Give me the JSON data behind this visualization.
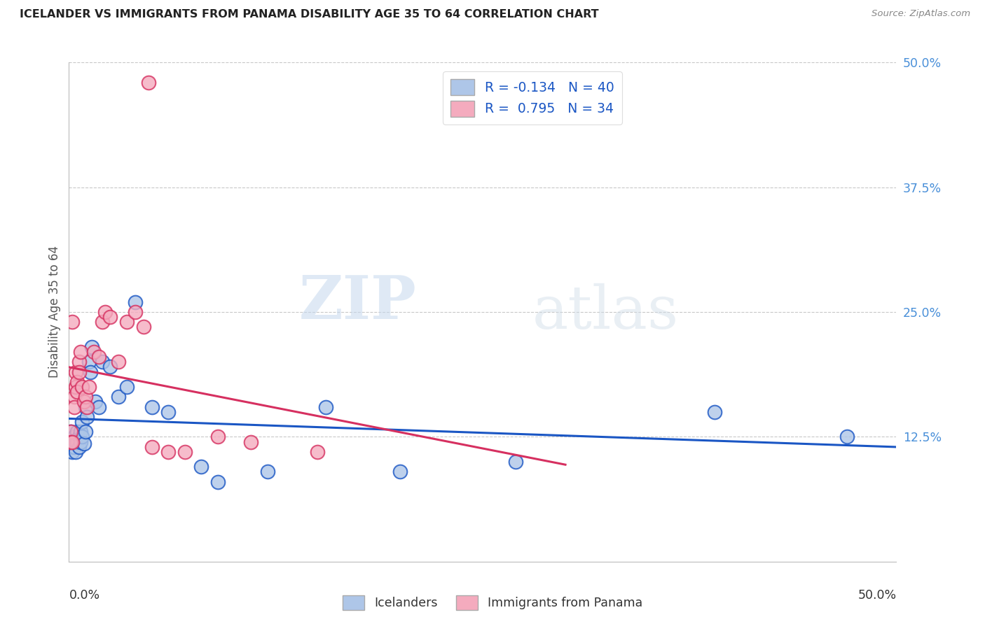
{
  "title": "ICELANDER VS IMMIGRANTS FROM PANAMA DISABILITY AGE 35 TO 64 CORRELATION CHART",
  "source": "Source: ZipAtlas.com",
  "ylabel": "Disability Age 35 to 64",
  "legend_label1": "Icelanders",
  "legend_label2": "Immigrants from Panama",
  "r1": "-0.134",
  "n1": "40",
  "r2": "0.795",
  "n2": "34",
  "xlim": [
    0.0,
    0.5
  ],
  "ylim": [
    0.0,
    0.5
  ],
  "color_blue": "#aec6e8",
  "color_pink": "#f4abbe",
  "line_blue": "#1a56c4",
  "line_pink": "#d63060",
  "icelanders_x": [
    0.001,
    0.001,
    0.002,
    0.002,
    0.003,
    0.003,
    0.004,
    0.004,
    0.005,
    0.005,
    0.006,
    0.006,
    0.007,
    0.007,
    0.008,
    0.008,
    0.009,
    0.01,
    0.01,
    0.011,
    0.012,
    0.013,
    0.014,
    0.016,
    0.018,
    0.02,
    0.025,
    0.03,
    0.035,
    0.04,
    0.05,
    0.06,
    0.08,
    0.09,
    0.12,
    0.155,
    0.2,
    0.27,
    0.39,
    0.47
  ],
  "icelanders_y": [
    0.13,
    0.12,
    0.115,
    0.11,
    0.125,
    0.115,
    0.12,
    0.11,
    0.13,
    0.12,
    0.115,
    0.125,
    0.13,
    0.12,
    0.14,
    0.125,
    0.118,
    0.155,
    0.13,
    0.145,
    0.2,
    0.19,
    0.215,
    0.16,
    0.155,
    0.2,
    0.195,
    0.165,
    0.175,
    0.26,
    0.155,
    0.15,
    0.095,
    0.08,
    0.09,
    0.155,
    0.09,
    0.1,
    0.15,
    0.125
  ],
  "panama_x": [
    0.001,
    0.001,
    0.002,
    0.002,
    0.003,
    0.003,
    0.004,
    0.004,
    0.005,
    0.005,
    0.006,
    0.006,
    0.007,
    0.008,
    0.009,
    0.01,
    0.011,
    0.012,
    0.015,
    0.018,
    0.02,
    0.022,
    0.025,
    0.03,
    0.035,
    0.04,
    0.045,
    0.05,
    0.06,
    0.07,
    0.09,
    0.11,
    0.15,
    0.048
  ],
  "panama_y": [
    0.13,
    0.12,
    0.24,
    0.12,
    0.165,
    0.155,
    0.19,
    0.175,
    0.18,
    0.17,
    0.2,
    0.19,
    0.21,
    0.175,
    0.16,
    0.165,
    0.155,
    0.175,
    0.21,
    0.205,
    0.24,
    0.25,
    0.245,
    0.2,
    0.24,
    0.25,
    0.235,
    0.115,
    0.11,
    0.11,
    0.125,
    0.12,
    0.11,
    0.48
  ],
  "watermark_zip": "ZIP",
  "watermark_atlas": "atlas",
  "background_color": "#ffffff",
  "grid_color": "#c8c8c8"
}
